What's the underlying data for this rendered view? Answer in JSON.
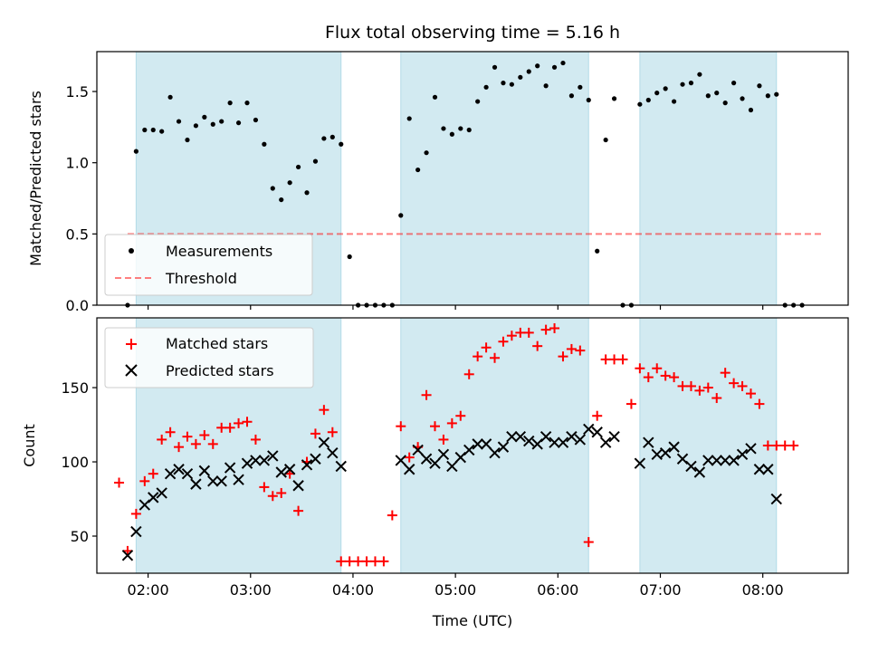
{
  "title": "Flux total observing time = 5.16 h",
  "colors": {
    "shade": "#add8e6",
    "measurement": "#000000",
    "threshold": "#ff0000",
    "matched": "#ff0000",
    "predicted": "#000000"
  },
  "chart_data": [
    {
      "type": "scatter",
      "panel": "top",
      "xlabel": "",
      "ylabel": "Matched/Predicted stars",
      "xlim": [
        "01:30",
        "08:50"
      ],
      "ylim": [
        0,
        1.78
      ],
      "yticks": [
        0.0,
        0.5,
        1.0,
        1.5
      ],
      "ytick_labels": [
        "0.0",
        "0.5",
        "1.0",
        "1.5"
      ],
      "grid": false,
      "legend": {
        "placement": "lower-left",
        "entries": [
          "Measurements",
          "Threshold"
        ]
      },
      "shaded_intervals": [
        [
          "01:53",
          "03:53"
        ],
        [
          "04:28",
          "06:18"
        ],
        [
          "06:48",
          "08:08"
        ]
      ],
      "threshold": {
        "name": "Threshold",
        "y": 0.5,
        "x_range": [
          "01:48",
          "08:36"
        ]
      },
      "series": [
        {
          "name": "Measurements",
          "points": [
            [
              "01:48",
              0.0
            ],
            [
              "01:53",
              1.08
            ],
            [
              "01:58",
              1.23
            ],
            [
              "02:03",
              1.23
            ],
            [
              "02:08",
              1.22
            ],
            [
              "02:13",
              1.46
            ],
            [
              "02:18",
              1.29
            ],
            [
              "02:23",
              1.16
            ],
            [
              "02:28",
              1.26
            ],
            [
              "02:33",
              1.32
            ],
            [
              "02:38",
              1.27
            ],
            [
              "02:43",
              1.29
            ],
            [
              "02:48",
              1.42
            ],
            [
              "02:53",
              1.28
            ],
            [
              "02:58",
              1.42
            ],
            [
              "03:03",
              1.3
            ],
            [
              "03:08",
              1.13
            ],
            [
              "03:13",
              0.82
            ],
            [
              "03:18",
              0.74
            ],
            [
              "03:23",
              0.86
            ],
            [
              "03:28",
              0.97
            ],
            [
              "03:33",
              0.79
            ],
            [
              "03:38",
              1.01
            ],
            [
              "03:43",
              1.17
            ],
            [
              "03:48",
              1.18
            ],
            [
              "03:53",
              1.13
            ],
            [
              "03:58",
              0.34
            ],
            [
              "04:03",
              0.0
            ],
            [
              "04:08",
              0.0
            ],
            [
              "04:13",
              0.0
            ],
            [
              "04:18",
              0.0
            ],
            [
              "04:23",
              0.0
            ],
            [
              "04:28",
              0.63
            ],
            [
              "04:33",
              1.31
            ],
            [
              "04:38",
              0.95
            ],
            [
              "04:43",
              1.07
            ],
            [
              "04:48",
              1.46
            ],
            [
              "04:53",
              1.24
            ],
            [
              "04:58",
              1.2
            ],
            [
              "05:03",
              1.24
            ],
            [
              "05:08",
              1.23
            ],
            [
              "05:13",
              1.43
            ],
            [
              "05:18",
              1.53
            ],
            [
              "05:23",
              1.67
            ],
            [
              "05:28",
              1.56
            ],
            [
              "05:33",
              1.55
            ],
            [
              "05:38",
              1.6
            ],
            [
              "05:43",
              1.64
            ],
            [
              "05:48",
              1.68
            ],
            [
              "05:53",
              1.54
            ],
            [
              "05:58",
              1.67
            ],
            [
              "06:03",
              1.7
            ],
            [
              "06:08",
              1.47
            ],
            [
              "06:13",
              1.53
            ],
            [
              "06:18",
              1.44
            ],
            [
              "06:23",
              0.38
            ],
            [
              "06:28",
              1.16
            ],
            [
              "06:33",
              1.45
            ],
            [
              "06:38",
              0.0
            ],
            [
              "06:43",
              0.0
            ],
            [
              "06:48",
              1.41
            ],
            [
              "06:53",
              1.44
            ],
            [
              "06:58",
              1.49
            ],
            [
              "07:03",
              1.52
            ],
            [
              "07:08",
              1.43
            ],
            [
              "07:13",
              1.55
            ],
            [
              "07:18",
              1.56
            ],
            [
              "07:23",
              1.62
            ],
            [
              "07:28",
              1.47
            ],
            [
              "07:33",
              1.49
            ],
            [
              "07:38",
              1.42
            ],
            [
              "07:43",
              1.56
            ],
            [
              "07:48",
              1.45
            ],
            [
              "07:53",
              1.37
            ],
            [
              "07:58",
              1.54
            ],
            [
              "08:03",
              1.47
            ],
            [
              "08:08",
              1.48
            ],
            [
              "08:13",
              0.0
            ],
            [
              "08:18",
              0.0
            ],
            [
              "08:23",
              0.0
            ]
          ]
        }
      ]
    },
    {
      "type": "scatter",
      "panel": "bottom",
      "xlabel": "Time (UTC)",
      "ylabel": "Count",
      "xlim": [
        "01:30",
        "08:50"
      ],
      "ylim": [
        25,
        197
      ],
      "xticks": [
        "02:00",
        "03:00",
        "04:00",
        "05:00",
        "06:00",
        "07:00",
        "08:00"
      ],
      "yticks": [
        50,
        100,
        150
      ],
      "grid": false,
      "legend": {
        "placement": "top-left",
        "entries": [
          "Matched stars",
          "Predicted stars"
        ]
      },
      "shaded_intervals": [
        [
          "01:53",
          "03:53"
        ],
        [
          "04:28",
          "06:18"
        ],
        [
          "06:48",
          "08:08"
        ]
      ],
      "series": [
        {
          "name": "Matched stars",
          "marker": "plus",
          "points": [
            [
              "01:43",
              86
            ],
            [
              "01:48",
              40
            ],
            [
              "01:53",
              65
            ],
            [
              "01:58",
              87
            ],
            [
              "02:03",
              92
            ],
            [
              "02:08",
              115
            ],
            [
              "02:13",
              120
            ],
            [
              "02:18",
              110
            ],
            [
              "02:23",
              117
            ],
            [
              "02:28",
              112
            ],
            [
              "02:33",
              118
            ],
            [
              "02:38",
              112
            ],
            [
              "02:43",
              123
            ],
            [
              "02:48",
              123
            ],
            [
              "02:53",
              126
            ],
            [
              "02:58",
              127
            ],
            [
              "03:03",
              115
            ],
            [
              "03:08",
              83
            ],
            [
              "03:13",
              77
            ],
            [
              "03:18",
              79
            ],
            [
              "03:23",
              92
            ],
            [
              "03:28",
              67
            ],
            [
              "03:33",
              100
            ],
            [
              "03:38",
              119
            ],
            [
              "03:43",
              135
            ],
            [
              "03:48",
              120
            ],
            [
              "03:53",
              33
            ],
            [
              "03:58",
              33
            ],
            [
              "04:03",
              33
            ],
            [
              "04:08",
              33
            ],
            [
              "04:13",
              33
            ],
            [
              "04:18",
              33
            ],
            [
              "04:23",
              64
            ],
            [
              "04:28",
              124
            ],
            [
              "04:33",
              103
            ],
            [
              "04:38",
              110
            ],
            [
              "04:43",
              145
            ],
            [
              "04:48",
              124
            ],
            [
              "04:53",
              115
            ],
            [
              "04:58",
              126
            ],
            [
              "05:03",
              131
            ],
            [
              "05:08",
              159
            ],
            [
              "05:13",
              171
            ],
            [
              "05:18",
              177
            ],
            [
              "05:23",
              170
            ],
            [
              "05:28",
              181
            ],
            [
              "05:33",
              185
            ],
            [
              "05:38",
              187
            ],
            [
              "05:43",
              187
            ],
            [
              "05:48",
              178
            ],
            [
              "05:53",
              189
            ],
            [
              "05:58",
              190
            ],
            [
              "06:03",
              171
            ],
            [
              "06:08",
              176
            ],
            [
              "06:13",
              175
            ],
            [
              "06:18",
              46
            ],
            [
              "06:23",
              131
            ],
            [
              "06:28",
              169
            ],
            [
              "06:33",
              169
            ],
            [
              "06:38",
              169
            ],
            [
              "06:43",
              139
            ],
            [
              "06:48",
              163
            ],
            [
              "06:53",
              157
            ],
            [
              "06:58",
              163
            ],
            [
              "07:03",
              158
            ],
            [
              "07:08",
              157
            ],
            [
              "07:13",
              151
            ],
            [
              "07:18",
              151
            ],
            [
              "07:23",
              148
            ],
            [
              "07:28",
              150
            ],
            [
              "07:33",
              143
            ],
            [
              "07:38",
              160
            ],
            [
              "07:43",
              153
            ],
            [
              "07:48",
              151
            ],
            [
              "07:53",
              146
            ],
            [
              "07:58",
              139
            ],
            [
              "08:03",
              111
            ],
            [
              "08:08",
              111
            ],
            [
              "08:13",
              111
            ],
            [
              "08:18",
              111
            ]
          ]
        },
        {
          "name": "Predicted stars",
          "marker": "x",
          "points": [
            [
              "01:48",
              37
            ],
            [
              "01:53",
              53
            ],
            [
              "01:58",
              71
            ],
            [
              "02:03",
              76
            ],
            [
              "02:08",
              79
            ],
            [
              "02:13",
              92
            ],
            [
              "02:18",
              95
            ],
            [
              "02:23",
              92
            ],
            [
              "02:28",
              85
            ],
            [
              "02:33",
              94
            ],
            [
              "02:38",
              87
            ],
            [
              "02:43",
              87
            ],
            [
              "02:48",
              96
            ],
            [
              "02:53",
              88
            ],
            [
              "02:58",
              99
            ],
            [
              "03:03",
              101
            ],
            [
              "03:08",
              101
            ],
            [
              "03:13",
              104
            ],
            [
              "03:18",
              93
            ],
            [
              "03:23",
              95
            ],
            [
              "03:28",
              84
            ],
            [
              "03:33",
              98
            ],
            [
              "03:38",
              102
            ],
            [
              "03:43",
              113
            ],
            [
              "03:48",
              106
            ],
            [
              "03:53",
              97
            ],
            [
              "04:28",
              101
            ],
            [
              "04:33",
              95
            ],
            [
              "04:38",
              108
            ],
            [
              "04:43",
              102
            ],
            [
              "04:48",
              99
            ],
            [
              "04:53",
              105
            ],
            [
              "04:58",
              97
            ],
            [
              "05:03",
              103
            ],
            [
              "05:08",
              108
            ],
            [
              "05:13",
              112
            ],
            [
              "05:18",
              112
            ],
            [
              "05:23",
              106
            ],
            [
              "05:28",
              110
            ],
            [
              "05:33",
              117
            ],
            [
              "05:38",
              117
            ],
            [
              "05:43",
              114
            ],
            [
              "05:48",
              112
            ],
            [
              "05:53",
              117
            ],
            [
              "05:58",
              113
            ],
            [
              "06:03",
              113
            ],
            [
              "06:08",
              117
            ],
            [
              "06:13",
              115
            ],
            [
              "06:18",
              122
            ],
            [
              "06:23",
              120
            ],
            [
              "06:28",
              113
            ],
            [
              "06:33",
              117
            ],
            [
              "06:48",
              99
            ],
            [
              "06:53",
              113
            ],
            [
              "06:58",
              105
            ],
            [
              "07:03",
              106
            ],
            [
              "07:08",
              110
            ],
            [
              "07:13",
              102
            ],
            [
              "07:18",
              97
            ],
            [
              "07:23",
              93
            ],
            [
              "07:28",
              101
            ],
            [
              "07:33",
              101
            ],
            [
              "07:38",
              101
            ],
            [
              "07:43",
              101
            ],
            [
              "07:48",
              105
            ],
            [
              "07:53",
              109
            ],
            [
              "07:58",
              95
            ],
            [
              "08:03",
              95
            ],
            [
              "08:08",
              75
            ]
          ]
        }
      ]
    }
  ]
}
